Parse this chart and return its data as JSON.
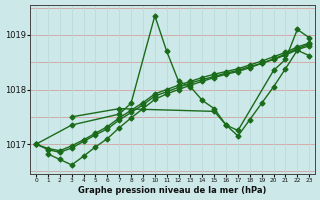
{
  "title": "Graphe pression niveau de la mer (hPa)",
  "bg_color": "#cce8e8",
  "line_color": "#1a6b1a",
  "grid_color_h": "#d4a0a0",
  "grid_color_v": "#b8d8d8",
  "xlim": [
    -0.5,
    23.5
  ],
  "ylim": [
    1016.45,
    1019.55
  ],
  "yticks": [
    1017,
    1018,
    1019
  ],
  "series": [
    {
      "x": [
        0,
        3,
        7,
        8,
        10,
        11,
        12,
        13,
        14,
        15,
        16,
        17,
        20,
        21,
        22,
        23
      ],
      "y": [
        1017.0,
        1017.35,
        1017.55,
        1017.75,
        1019.35,
        1018.7,
        1018.15,
        1018.05,
        1017.8,
        1017.65,
        1017.35,
        1017.25,
        1018.35,
        1018.55,
        1019.1,
        1018.95
      ]
    },
    {
      "x": [
        0,
        1,
        2,
        3,
        4,
        5,
        6,
        7,
        8,
        9,
        10,
        11,
        12,
        13,
        14,
        15,
        16,
        17,
        18,
        19,
        20,
        21,
        22,
        23
      ],
      "y": [
        1017.0,
        1016.92,
        1016.88,
        1016.97,
        1017.08,
        1017.2,
        1017.32,
        1017.48,
        1017.62,
        1017.76,
        1017.92,
        1018.0,
        1018.08,
        1018.15,
        1018.22,
        1018.28,
        1018.33,
        1018.38,
        1018.45,
        1018.52,
        1018.6,
        1018.68,
        1018.78,
        1018.85
      ]
    },
    {
      "x": [
        0,
        1,
        2,
        3,
        4,
        5,
        6,
        7,
        8,
        9,
        10,
        11,
        12,
        13,
        14,
        15,
        16,
        17,
        18,
        19,
        20,
        21,
        22,
        23
      ],
      "y": [
        1017.0,
        1016.9,
        1016.85,
        1016.93,
        1017.05,
        1017.17,
        1017.28,
        1017.44,
        1017.58,
        1017.72,
        1017.88,
        1017.96,
        1018.04,
        1018.12,
        1018.18,
        1018.24,
        1018.3,
        1018.35,
        1018.42,
        1018.48,
        1018.55,
        1018.63,
        1018.73,
        1018.8
      ]
    },
    {
      "x": [
        1,
        2,
        3,
        4,
        5,
        6,
        7,
        8,
        9,
        10,
        11,
        12,
        13,
        14,
        15,
        16,
        17,
        18,
        19,
        20,
        21,
        22,
        23
      ],
      "y": [
        1016.82,
        1016.72,
        1016.62,
        1016.78,
        1016.95,
        1017.1,
        1017.3,
        1017.48,
        1017.65,
        1017.82,
        1017.92,
        1018.0,
        1018.08,
        1018.15,
        1018.22,
        1018.28,
        1018.33,
        1018.4,
        1018.48,
        1018.56,
        1018.65,
        1018.75,
        1018.83
      ]
    },
    {
      "x": [
        3,
        7,
        15,
        16,
        17,
        18,
        19,
        20,
        21,
        22,
        23
      ],
      "y": [
        1017.5,
        1017.65,
        1017.6,
        1017.35,
        1017.15,
        1017.45,
        1017.75,
        1018.05,
        1018.38,
        1018.72,
        1018.62
      ]
    }
  ],
  "marker": "D",
  "marker_size": 2.5,
  "linewidth": 1.0
}
